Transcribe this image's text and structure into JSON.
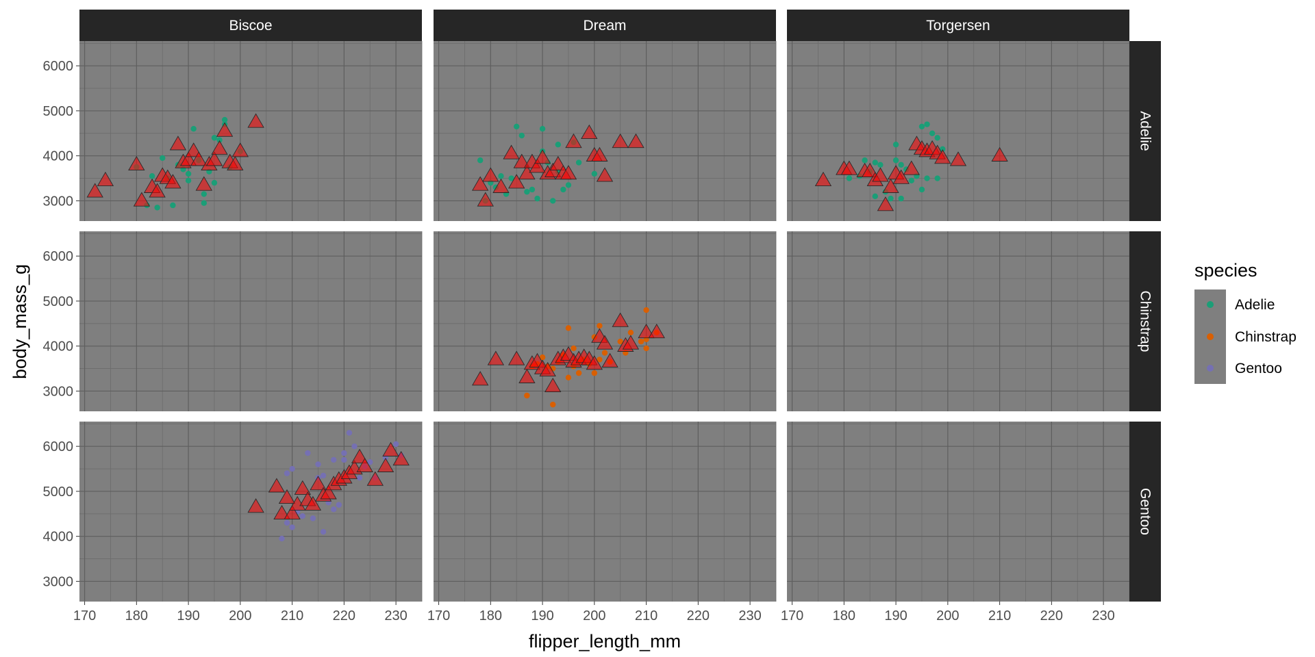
{
  "chart_data": {
    "type": "scatter",
    "xlabel": "flipper_length_mm",
    "ylabel": "body_mass_g",
    "col_facets": [
      "Biscoe",
      "Dream",
      "Torgersen"
    ],
    "row_facets": [
      "Adelie",
      "Chinstrap",
      "Gentoo"
    ],
    "xlim": [
      169,
      235
    ],
    "ylim": [
      2550,
      6550
    ],
    "xticks": [
      170,
      180,
      190,
      200,
      210,
      220,
      230
    ],
    "yticks": [
      3000,
      4000,
      5000,
      6000
    ],
    "panel_background": "#7f7f7f",
    "strip_background": "#262626",
    "triangle_fill": "#ff0000",
    "legend": {
      "title": "species",
      "position": "right",
      "entries": [
        {
          "label": "Adelie",
          "color": "#1b9e77"
        },
        {
          "label": "Chinstrap",
          "color": "#d95f02"
        },
        {
          "label": "Gentoo",
          "color": "#7570b3"
        }
      ]
    },
    "panels": [
      {
        "col": "Biscoe",
        "row": "Adelie",
        "species": "Adelie",
        "point_color": "#1b9e77",
        "points": [
          [
            180,
            3750
          ],
          [
            182,
            2900
          ],
          [
            183,
            3550
          ],
          [
            184,
            2850
          ],
          [
            185,
            3950
          ],
          [
            186,
            3500
          ],
          [
            187,
            2900
          ],
          [
            188,
            3800
          ],
          [
            189,
            3700
          ],
          [
            190,
            3450
          ],
          [
            190,
            3600
          ],
          [
            191,
            4600
          ],
          [
            192,
            3900
          ],
          [
            193,
            2950
          ],
          [
            193,
            3150
          ],
          [
            194,
            3650
          ],
          [
            195,
            3400
          ],
          [
            195,
            4400
          ],
          [
            196,
            4350
          ],
          [
            197,
            4700
          ],
          [
            197,
            4800
          ],
          [
            198,
            3750
          ],
          [
            200,
            4100
          ]
        ],
        "triangles": [
          [
            172,
            3200
          ],
          [
            174,
            3450
          ],
          [
            180,
            3800
          ],
          [
            181,
            3000
          ],
          [
            183,
            3300
          ],
          [
            184,
            3200
          ],
          [
            185,
            3550
          ],
          [
            186,
            3500
          ],
          [
            187,
            3400
          ],
          [
            188,
            4250
          ],
          [
            189,
            3850
          ],
          [
            190,
            3900
          ],
          [
            191,
            4100
          ],
          [
            192,
            3900
          ],
          [
            193,
            3350
          ],
          [
            194,
            3800
          ],
          [
            195,
            3900
          ],
          [
            196,
            4150
          ],
          [
            197,
            4550
          ],
          [
            198,
            3850
          ],
          [
            199,
            3800
          ],
          [
            200,
            4100
          ],
          [
            203,
            4750
          ]
        ]
      },
      {
        "col": "Dream",
        "row": "Adelie",
        "species": "Adelie",
        "point_color": "#1b9e77",
        "points": [
          [
            178,
            3900
          ],
          [
            179,
            3000
          ],
          [
            180,
            3400
          ],
          [
            181,
            3300
          ],
          [
            182,
            3550
          ],
          [
            183,
            3150
          ],
          [
            184,
            3500
          ],
          [
            185,
            4650
          ],
          [
            186,
            4450
          ],
          [
            187,
            3200
          ],
          [
            188,
            3250
          ],
          [
            189,
            3050
          ],
          [
            190,
            4100
          ],
          [
            190,
            4600
          ],
          [
            191,
            3850
          ],
          [
            192,
            3000
          ],
          [
            193,
            3650
          ],
          [
            193,
            4250
          ],
          [
            194,
            3250
          ],
          [
            195,
            3350
          ],
          [
            196,
            4300
          ],
          [
            197,
            3850
          ],
          [
            200,
            3600
          ]
        ],
        "triangles": [
          [
            178,
            3350
          ],
          [
            179,
            3000
          ],
          [
            180,
            3550
          ],
          [
            182,
            3300
          ],
          [
            184,
            4050
          ],
          [
            185,
            3400
          ],
          [
            186,
            3850
          ],
          [
            187,
            3600
          ],
          [
            188,
            3850
          ],
          [
            189,
            3750
          ],
          [
            190,
            3950
          ],
          [
            191,
            3600
          ],
          [
            192,
            3650
          ],
          [
            193,
            3800
          ],
          [
            194,
            3600
          ],
          [
            195,
            3600
          ],
          [
            196,
            4300
          ],
          [
            199,
            4500
          ],
          [
            200,
            4000
          ],
          [
            201,
            4000
          ],
          [
            202,
            3550
          ],
          [
            205,
            4300
          ],
          [
            208,
            4300
          ]
        ]
      },
      {
        "col": "Torgersen",
        "row": "Adelie",
        "species": "Adelie",
        "point_color": "#1b9e77",
        "points": [
          [
            181,
            3500
          ],
          [
            183,
            3550
          ],
          [
            184,
            3900
          ],
          [
            185,
            3650
          ],
          [
            186,
            3850
          ],
          [
            186,
            3100
          ],
          [
            187,
            3800
          ],
          [
            188,
            3200
          ],
          [
            189,
            3050
          ],
          [
            190,
            3900
          ],
          [
            190,
            4250
          ],
          [
            191,
            3050
          ],
          [
            191,
            3800
          ],
          [
            192,
            3700
          ],
          [
            193,
            3450
          ],
          [
            194,
            3550
          ],
          [
            195,
            3250
          ],
          [
            195,
            4650
          ],
          [
            196,
            3500
          ],
          [
            196,
            4700
          ],
          [
            197,
            4500
          ],
          [
            198,
            4400
          ],
          [
            198,
            3500
          ],
          [
            199,
            4150
          ]
        ],
        "triangles": [
          [
            176,
            3450
          ],
          [
            180,
            3700
          ],
          [
            181,
            3700
          ],
          [
            184,
            3650
          ],
          [
            185,
            3650
          ],
          [
            186,
            3450
          ],
          [
            187,
            3550
          ],
          [
            188,
            2900
          ],
          [
            189,
            3300
          ],
          [
            190,
            3600
          ],
          [
            191,
            3500
          ],
          [
            193,
            3700
          ],
          [
            194,
            4250
          ],
          [
            195,
            4150
          ],
          [
            196,
            4100
          ],
          [
            197,
            4150
          ],
          [
            198,
            4050
          ],
          [
            199,
            3950
          ],
          [
            202,
            3900
          ],
          [
            210,
            4000
          ]
        ]
      },
      {
        "col": "Dream",
        "row": "Chinstrap",
        "species": "Chinstrap",
        "point_color": "#d95f02",
        "points": [
          [
            187,
            2900
          ],
          [
            188,
            3550
          ],
          [
            189,
            3600
          ],
          [
            190,
            3750
          ],
          [
            191,
            3550
          ],
          [
            192,
            2700
          ],
          [
            192,
            3500
          ],
          [
            193,
            3650
          ],
          [
            194,
            3800
          ],
          [
            195,
            3300
          ],
          [
            195,
            4400
          ],
          [
            196,
            3550
          ],
          [
            196,
            3950
          ],
          [
            197,
            3400
          ],
          [
            197,
            3650
          ],
          [
            198,
            3700
          ],
          [
            199,
            3600
          ],
          [
            200,
            3400
          ],
          [
            200,
            4200
          ],
          [
            201,
            3700
          ],
          [
            201,
            4450
          ],
          [
            202,
            3850
          ],
          [
            203,
            3650
          ],
          [
            205,
            4100
          ],
          [
            206,
            3850
          ],
          [
            207,
            4300
          ],
          [
            209,
            4100
          ],
          [
            210,
            4800
          ],
          [
            210,
            4150
          ],
          [
            210,
            3950
          ],
          [
            212,
            4300
          ]
        ],
        "triangles": [
          [
            178,
            3250
          ],
          [
            181,
            3700
          ],
          [
            185,
            3700
          ],
          [
            187,
            3300
          ],
          [
            188,
            3600
          ],
          [
            189,
            3650
          ],
          [
            190,
            3500
          ],
          [
            191,
            3450
          ],
          [
            192,
            3100
          ],
          [
            193,
            3700
          ],
          [
            194,
            3750
          ],
          [
            195,
            3800
          ],
          [
            196,
            3650
          ],
          [
            197,
            3700
          ],
          [
            198,
            3750
          ],
          [
            199,
            3700
          ],
          [
            200,
            3600
          ],
          [
            201,
            4200
          ],
          [
            202,
            4050
          ],
          [
            203,
            3650
          ],
          [
            205,
            4550
          ],
          [
            206,
            4000
          ],
          [
            207,
            4050
          ],
          [
            210,
            4300
          ],
          [
            212,
            4300
          ]
        ]
      },
      {
        "col": "Biscoe",
        "row": "Gentoo",
        "species": "Gentoo",
        "point_color": "#7570b3",
        "points": [
          [
            208,
            3950
          ],
          [
            209,
            4300
          ],
          [
            209,
            5400
          ],
          [
            210,
            4200
          ],
          [
            210,
            5500
          ],
          [
            211,
            4550
          ],
          [
            212,
            4450
          ],
          [
            213,
            5850
          ],
          [
            214,
            4400
          ],
          [
            215,
            5300
          ],
          [
            215,
            5600
          ],
          [
            216,
            4100
          ],
          [
            216,
            5350
          ],
          [
            217,
            4750
          ],
          [
            218,
            4600
          ],
          [
            218,
            5700
          ],
          [
            219,
            4700
          ],
          [
            220,
            5850
          ],
          [
            220,
            5700
          ],
          [
            221,
            6300
          ],
          [
            222,
            6000
          ],
          [
            223,
            5300
          ],
          [
            224,
            5550
          ],
          [
            225,
            5650
          ],
          [
            226,
            5300
          ],
          [
            228,
            5750
          ],
          [
            230,
            6050
          ],
          [
            231,
            5800
          ]
        ],
        "triangles": [
          [
            203,
            4650
          ],
          [
            207,
            5100
          ],
          [
            208,
            4500
          ],
          [
            209,
            4850
          ],
          [
            210,
            4500
          ],
          [
            211,
            4700
          ],
          [
            212,
            5050
          ],
          [
            213,
            4800
          ],
          [
            214,
            4700
          ],
          [
            215,
            5150
          ],
          [
            216,
            4900
          ],
          [
            217,
            4950
          ],
          [
            218,
            5150
          ],
          [
            219,
            5250
          ],
          [
            220,
            5300
          ],
          [
            221,
            5400
          ],
          [
            222,
            5500
          ],
          [
            223,
            5750
          ],
          [
            224,
            5550
          ],
          [
            226,
            5250
          ],
          [
            228,
            5550
          ],
          [
            229,
            5900
          ],
          [
            231,
            5700
          ]
        ]
      }
    ]
  }
}
